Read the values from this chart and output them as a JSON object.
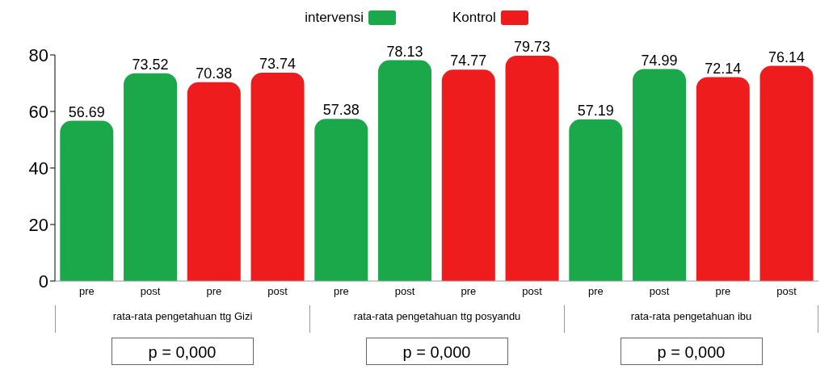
{
  "chart_data": {
    "type": "bar",
    "categories": [
      "pre",
      "post",
      "pre",
      "post",
      "pre",
      "post",
      "pre",
      "post",
      "pre",
      "post",
      "pre",
      "post"
    ],
    "series": [
      {
        "name": "intervensi",
        "color": "#1aa84a",
        "values": [
          56.69,
          73.52,
          null,
          null,
          57.38,
          78.13,
          null,
          null,
          57.19,
          74.99,
          null,
          null
        ]
      },
      {
        "name": "Kontrol",
        "color": "#ee1c1c",
        "values": [
          null,
          null,
          70.38,
          73.74,
          null,
          null,
          74.77,
          79.73,
          null,
          null,
          72.14,
          76.14
        ]
      }
    ],
    "ylim": [
      0,
      80
    ],
    "yticks": [
      0,
      20,
      40,
      60,
      80
    ],
    "grid": false,
    "legend": "top",
    "data_labels": true,
    "annotations": [
      "rata-rata pengetahuan ttg Gizi",
      "rata-rata pengetahuan ttg posyandu",
      "rata-rata pengetahuan ibu",
      "p = 0,000",
      "p = 0,000",
      "p = 0,000"
    ]
  }
}
